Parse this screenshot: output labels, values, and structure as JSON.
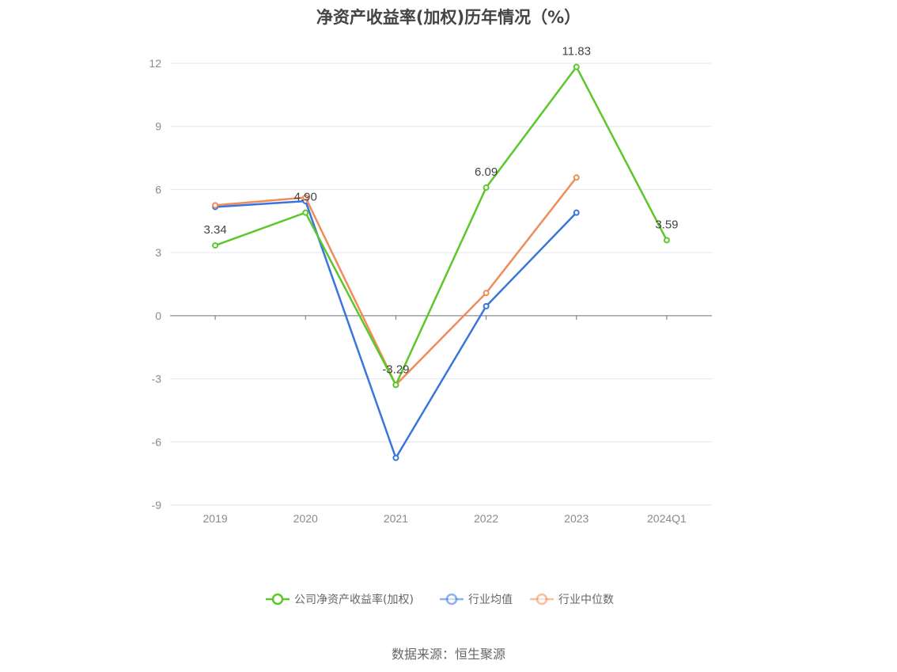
{
  "title": "净资产收益率(加权)历年情况（%）",
  "source": "数据来源：恒生聚源",
  "chart_data": {
    "type": "line",
    "categories": [
      "2019",
      "2020",
      "2021",
      "2022",
      "2023",
      "2024Q1"
    ],
    "ylim": [
      -9,
      12
    ],
    "yticks": [
      12,
      9,
      6,
      3,
      0,
      -3,
      -6,
      -9
    ],
    "grid": true,
    "legend_position": "bottom",
    "series": [
      {
        "name": "公司净资产收益率(加权)",
        "color": "#5cc72a",
        "values": [
          3.34,
          4.9,
          -3.29,
          6.09,
          11.83,
          3.59
        ],
        "labels": [
          "3.34",
          "4.90",
          "-3.29",
          "6.09",
          "11.83",
          "3.59"
        ]
      },
      {
        "name": "行业均值",
        "color": "#3a75dd",
        "values": [
          5.17,
          5.45,
          -6.76,
          0.45,
          4.9,
          null
        ]
      },
      {
        "name": "行业中位数",
        "color": "#ef8c5a",
        "values": [
          5.25,
          5.62,
          -3.29,
          1.08,
          6.57,
          null
        ]
      }
    ]
  }
}
